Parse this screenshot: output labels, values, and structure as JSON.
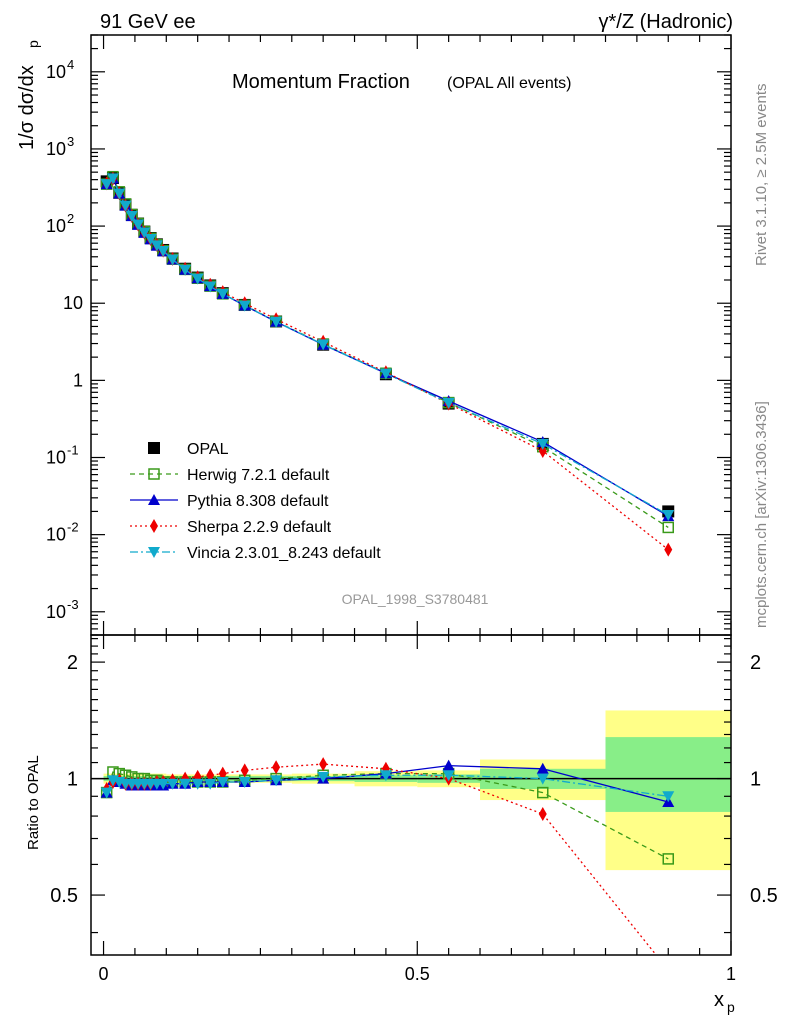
{
  "header": {
    "left": "91 GeV ee",
    "right": "γ*/Z (Hadronic)"
  },
  "plot": {
    "title": "Momentum Fraction",
    "subtitle": "(OPAL All events)",
    "ylabel_top": "1/σ dσ/dx",
    "ylabel_top_sub": "p",
    "ylabel_bottom": "Ratio to OPAL",
    "xlabel": "x",
    "xlabel_sub": "p",
    "watermark": "OPAL_1998_S3780481",
    "side_top": "Rivet 3.1.10, ≥ 2.5M events",
    "side_bottom": "mcplots.cern.ch [arXiv:1306.3436]"
  },
  "chart_data": {
    "type": "line",
    "xlim": [
      -0.02,
      1.0
    ],
    "ylim_main": [
      0.0005,
      30000
    ],
    "ylim_ratio": [
      0.35,
      2.35
    ],
    "yscale_main": "log",
    "grid": false,
    "legend_placement": "lower-left",
    "x_ticks": [
      "0",
      "0.5",
      "1"
    ],
    "y_ticks_main": [
      "10^-3",
      "10^-2",
      "10^-1",
      "1",
      "10",
      "10^2",
      "10^3",
      "10^4"
    ],
    "y_ticks_ratio": [
      "0.5",
      "1",
      "2"
    ],
    "x": [
      0.005,
      0.015,
      0.025,
      0.035,
      0.045,
      0.055,
      0.065,
      0.075,
      0.085,
      0.095,
      0.11,
      0.13,
      0.15,
      0.17,
      0.19,
      0.225,
      0.275,
      0.35,
      0.45,
      0.55,
      0.7,
      0.9
    ],
    "data": [
      380,
      420,
      270,
      190,
      140,
      108,
      85,
      70,
      58,
      49,
      38,
      28,
      21.5,
      17,
      13.5,
      9.5,
      5.8,
      2.9,
      1.2,
      0.5,
      0.15,
      0.02
    ],
    "uncertainty_bands": [
      {
        "x_range": [
          0.0,
          0.1
        ],
        "ratio_low": 0.97,
        "ratio_high": 1.03,
        "inner_low": 0.985,
        "inner_high": 1.015
      },
      {
        "x_range": [
          0.1,
          0.2
        ],
        "ratio_low": 0.975,
        "ratio_high": 1.025,
        "inner_low": 0.985,
        "inner_high": 1.015
      },
      {
        "x_range": [
          0.2,
          0.3
        ],
        "ratio_low": 0.975,
        "ratio_high": 1.025,
        "inner_low": 0.985,
        "inner_high": 1.015
      },
      {
        "x_range": [
          0.3,
          0.4
        ],
        "ratio_low": 0.97,
        "ratio_high": 1.03,
        "inner_low": 0.985,
        "inner_high": 1.015
      },
      {
        "x_range": [
          0.4,
          0.5
        ],
        "ratio_low": 0.955,
        "ratio_high": 1.045,
        "inner_low": 0.98,
        "inner_high": 1.02
      },
      {
        "x_range": [
          0.5,
          0.6
        ],
        "ratio_low": 0.95,
        "ratio_high": 1.05,
        "inner_low": 0.975,
        "inner_high": 1.025
      },
      {
        "x_range": [
          0.6,
          0.8
        ],
        "ratio_low": 0.88,
        "ratio_high": 1.12,
        "inner_low": 0.94,
        "inner_high": 1.06
      },
      {
        "x_range": [
          0.8,
          1.0
        ],
        "ratio_low": 0.58,
        "ratio_high": 1.5,
        "inner_low": 0.82,
        "inner_high": 1.28
      }
    ],
    "series": [
      {
        "name": "OPAL",
        "marker": "square",
        "color": "#000000",
        "line": "none",
        "ratio": [
          1.0,
          1.0,
          1.0,
          1.0,
          1.0,
          1.0,
          1.0,
          1.0,
          1.0,
          1.0,
          1.0,
          1.0,
          1.0,
          1.0,
          1.0,
          1.0,
          1.0,
          1.0,
          1.0,
          1.0,
          1.0,
          1.0
        ]
      },
      {
        "name": "Herwig 7.2.1 default",
        "marker": "open-square",
        "color": "#3a9a1a",
        "line": "dashed",
        "ratio": [
          0.92,
          1.04,
          1.03,
          1.02,
          1.01,
          1.0,
          1.0,
          0.99,
          0.99,
          0.98,
          0.98,
          0.98,
          0.98,
          0.98,
          0.98,
          0.99,
          1.0,
          1.02,
          1.03,
          1.03,
          0.92,
          0.62
        ]
      },
      {
        "name": "Pythia 8.308 default",
        "marker": "triangle-up",
        "color": "#0000cc",
        "line": "solid",
        "ratio": [
          0.92,
          0.99,
          0.98,
          0.97,
          0.96,
          0.96,
          0.96,
          0.96,
          0.96,
          0.96,
          0.97,
          0.97,
          0.98,
          0.98,
          0.98,
          0.98,
          0.99,
          1.0,
          1.03,
          1.08,
          1.06,
          0.87
        ]
      },
      {
        "name": "Sherpa 2.2.9 default",
        "marker": "diamond",
        "color": "#ee0000",
        "line": "dotted",
        "ratio": [
          0.94,
          0.98,
          0.99,
          0.97,
          0.97,
          0.97,
          0.97,
          0.97,
          0.98,
          0.98,
          0.99,
          1.0,
          1.01,
          1.02,
          1.03,
          1.05,
          1.07,
          1.09,
          1.06,
          1.0,
          0.81,
          0.32
        ]
      },
      {
        "name": "Vincia 2.3.01_8.243 default",
        "marker": "triangle-down",
        "color": "#11aacc",
        "line": "dashdot",
        "ratio": [
          0.92,
          0.99,
          0.98,
          0.97,
          0.97,
          0.97,
          0.97,
          0.97,
          0.97,
          0.97,
          0.97,
          0.97,
          0.97,
          0.97,
          0.98,
          0.98,
          0.99,
          1.01,
          1.02,
          1.02,
          1.0,
          0.9
        ]
      }
    ]
  }
}
